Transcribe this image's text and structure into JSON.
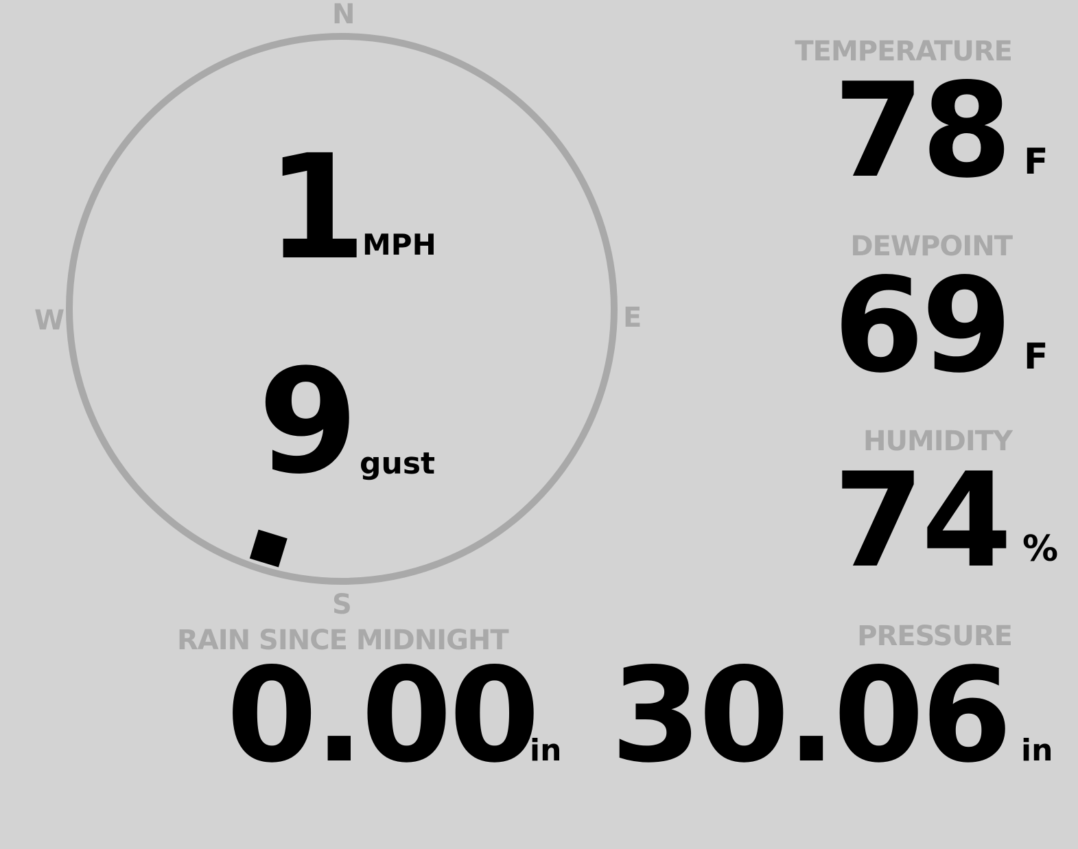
{
  "colors": {
    "background": "#d3d3d3",
    "label": "#a9a9a9",
    "value": "#000000",
    "dial": "#a9a9a9"
  },
  "wind": {
    "compass": {
      "n": "N",
      "e": "E",
      "s": "S",
      "w": "W"
    },
    "speed": "1",
    "speed_unit": "MPH",
    "gust": "9",
    "gust_unit": "gust",
    "direction_deg": 197
  },
  "temperature": {
    "label": "TEMPERATURE",
    "value": "78",
    "unit": "F"
  },
  "dewpoint": {
    "label": "DEWPOINT",
    "value": "69",
    "unit": "F"
  },
  "humidity": {
    "label": "HUMIDITY",
    "value": "74",
    "unit": "%"
  },
  "rain": {
    "label": "RAIN SINCE MIDNIGHT",
    "value": "0.00",
    "unit": "in"
  },
  "pressure": {
    "label": "PRESSURE",
    "value": "30.06",
    "unit": "in"
  }
}
